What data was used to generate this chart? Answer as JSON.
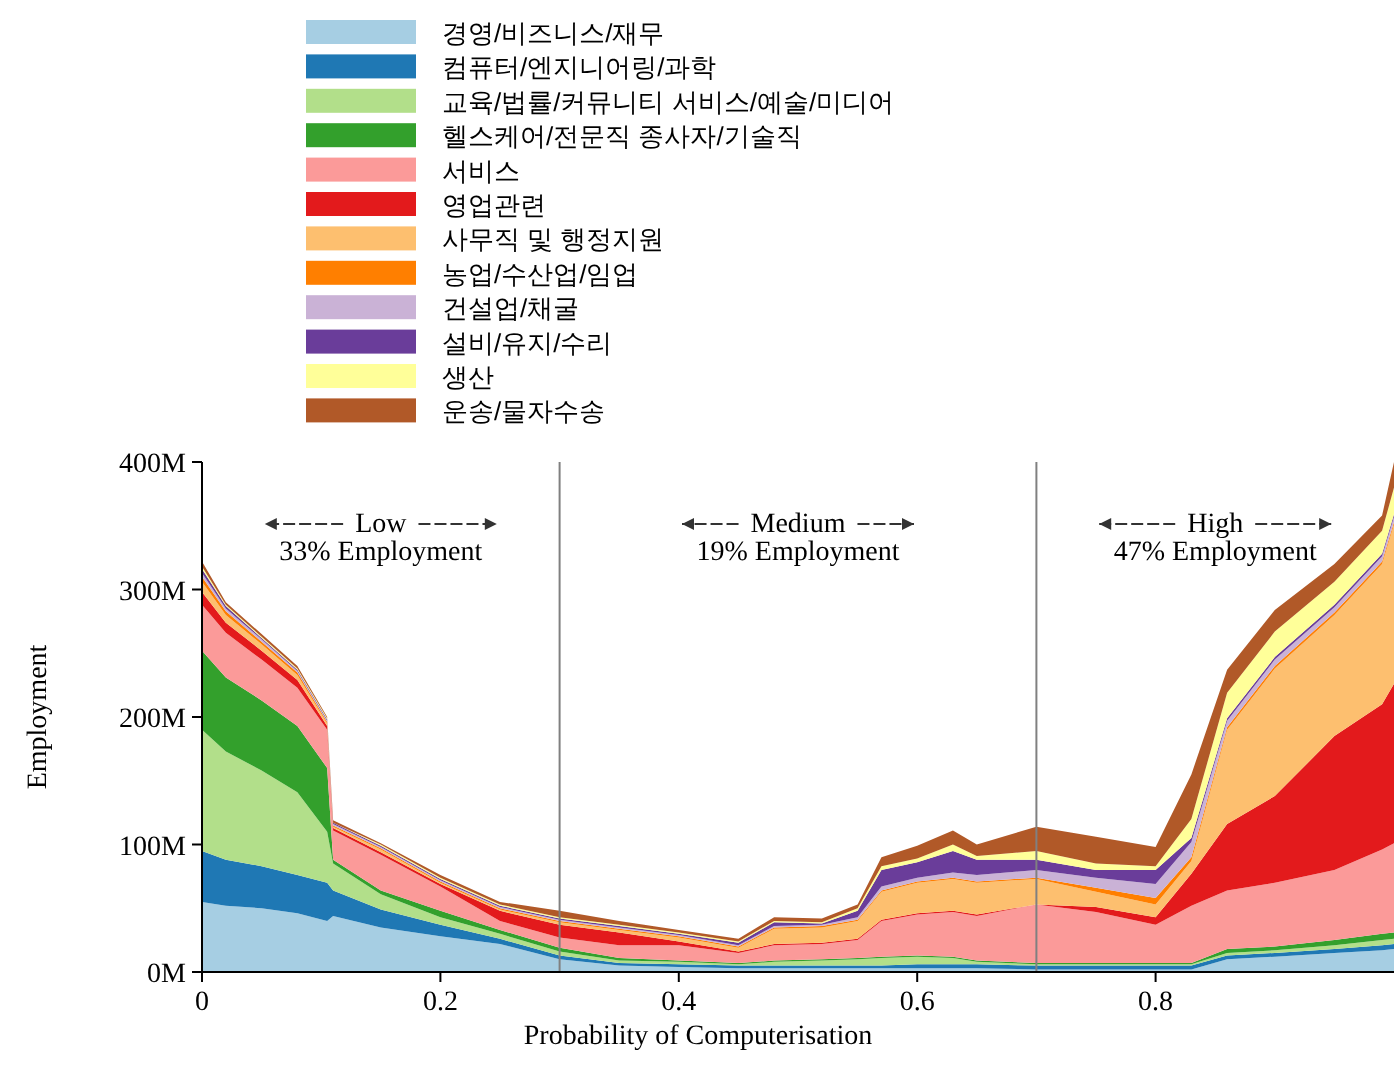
{
  "chart_data": {
    "type": "area",
    "stacked": true,
    "xlabel": "Probability of Computerisation",
    "ylabel": "Employment",
    "x": [
      0,
      0.02,
      0.05,
      0.08,
      0.105,
      0.11,
      0.15,
      0.2,
      0.25,
      0.3,
      0.35,
      0.4,
      0.45,
      0.48,
      0.52,
      0.55,
      0.57,
      0.6,
      0.63,
      0.65,
      0.7,
      0.75,
      0.8,
      0.83,
      0.86,
      0.9,
      0.95,
      0.99,
      1.0
    ],
    "xlim": [
      0,
      1
    ],
    "xticks": [
      0,
      0.2,
      0.4,
      0.6,
      0.8
    ],
    "ylim": [
      0,
      400
    ],
    "yticks": [
      {
        "value": 0,
        "label": "0M"
      },
      {
        "value": 100,
        "label": "100M"
      },
      {
        "value": 200,
        "label": "200M"
      },
      {
        "value": 300,
        "label": "300M"
      },
      {
        "value": 400,
        "label": "400M"
      }
    ],
    "legend": "top",
    "grid": false,
    "series": [
      {
        "name": "경영/비즈니스/재무",
        "color": "#a6cee3",
        "values": [
          55,
          52,
          50,
          46,
          40,
          44,
          35,
          28,
          22,
          10,
          5,
          4,
          3,
          3,
          3,
          3,
          3,
          3,
          3,
          3,
          2,
          2,
          2,
          2,
          10,
          12,
          15,
          17,
          18
        ]
      },
      {
        "name": "컴퓨터/엔지니어링/과학",
        "color": "#1f78b4",
        "values": [
          40,
          36,
          33,
          30,
          30,
          20,
          14,
          9,
          4,
          3,
          2,
          2,
          2,
          2,
          2,
          2,
          2,
          3,
          3,
          3,
          3,
          3,
          3,
          3,
          3,
          3,
          3,
          4,
          4
        ]
      },
      {
        "name": "교육/법률/커뮤니티 서비스/예술/미디어",
        "color": "#b2df8a",
        "values": [
          95,
          85,
          75,
          65,
          40,
          21,
          12,
          6,
          4,
          3,
          2,
          2,
          1,
          3,
          4,
          5,
          6,
          6,
          5,
          2,
          1,
          1,
          1,
          1,
          2,
          2,
          3,
          4,
          4
        ]
      },
      {
        "name": "헬스케어/전문직 종사자/기술직",
        "color": "#33a02c",
        "values": [
          62,
          58,
          55,
          52,
          50,
          3,
          3,
          5,
          3,
          3,
          2,
          1,
          1,
          1,
          1,
          1,
          1,
          1,
          1,
          1,
          1,
          1,
          1,
          1,
          3,
          3,
          4,
          5,
          5
        ]
      },
      {
        "name": "서비스",
        "color": "#fb9a99",
        "values": [
          36,
          35,
          32,
          30,
          30,
          23,
          28,
          19,
          7,
          8,
          10,
          12,
          8,
          12,
          12,
          14,
          28,
          32,
          35,
          35,
          46,
          40,
          30,
          45,
          46,
          50,
          55,
          66,
          70
        ]
      },
      {
        "name": "영업관련",
        "color": "#e31a1c",
        "values": [
          10,
          8,
          7,
          6,
          3,
          2,
          2,
          2,
          8,
          10,
          10,
          3,
          1,
          1,
          1,
          1,
          1,
          1,
          1,
          1,
          0,
          4,
          6,
          25,
          52,
          68,
          105,
          114,
          125
        ]
      },
      {
        "name": "사무직 및 행정지원",
        "color": "#fdbf6f",
        "values": [
          8,
          6,
          5,
          4,
          2,
          1,
          2,
          1,
          1,
          2,
          2,
          3,
          3,
          12,
          12,
          14,
          22,
          24,
          25,
          25,
          20,
          12,
          10,
          10,
          74,
          100,
          95,
          110,
          125
        ]
      },
      {
        "name": "농업/수산업/임업",
        "color": "#ff7f00",
        "values": [
          4,
          3,
          2,
          2,
          1,
          1,
          1,
          1,
          1,
          1,
          1,
          1,
          1,
          1,
          1,
          1,
          1,
          1,
          1,
          1,
          1,
          3,
          5,
          3,
          2,
          2,
          2,
          2,
          2
        ]
      },
      {
        "name": "건설업/채굴",
        "color": "#cab2d6",
        "values": [
          3,
          2,
          2,
          1,
          1,
          1,
          1,
          1,
          1,
          1,
          1,
          1,
          1,
          1,
          1,
          2,
          3,
          3,
          4,
          5,
          6,
          8,
          11,
          12,
          5,
          5,
          4,
          4,
          4
        ]
      },
      {
        "name": "설비/유지/수리",
        "color": "#6a3d9a",
        "values": [
          3,
          2,
          1,
          1,
          1,
          1,
          1,
          1,
          1,
          1,
          1,
          1,
          2,
          3,
          1,
          5,
          13,
          12,
          17,
          12,
          8,
          6,
          11,
          3,
          2,
          2,
          2,
          2,
          2
        ]
      },
      {
        "name": "생산",
        "color": "#ffff99",
        "values": [
          2,
          1,
          1,
          1,
          1,
          0,
          1,
          1,
          1,
          1,
          1,
          1,
          1,
          1,
          1,
          2,
          3,
          3,
          5,
          3,
          7,
          5,
          3,
          15,
          20,
          20,
          18,
          18,
          21
        ]
      },
      {
        "name": "운송/물자수송",
        "color": "#b15928",
        "values": [
          4,
          2,
          2,
          2,
          1,
          2,
          1,
          2,
          2,
          5,
          3,
          2,
          2,
          3,
          3,
          3,
          7,
          10,
          11,
          9,
          19,
          21,
          15,
          35,
          18,
          17,
          14,
          12,
          20
        ]
      }
    ],
    "ref_lines": [
      {
        "axis": "x",
        "value": 0.3,
        "color": "#808080"
      },
      {
        "axis": "x",
        "value": 0.7,
        "color": "#808080"
      }
    ],
    "annotations": [
      "Low",
      "33% Employment",
      "Medium",
      "19% Employment",
      "High",
      "47% Employment"
    ]
  }
}
